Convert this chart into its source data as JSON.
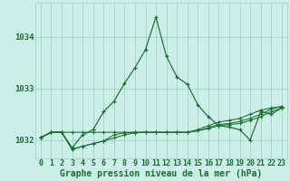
{
  "title": "Graphe pression niveau de la mer (hPa)",
  "background_color": "#cceee8",
  "grid_color": "#99ccbb",
  "line_color": "#1a6e2e",
  "marker_color": "#1a6e2e",
  "x_labels": [
    "0",
    "1",
    "2",
    "3",
    "4",
    "5",
    "6",
    "7",
    "8",
    "9",
    "10",
    "11",
    "12",
    "13",
    "14",
    "15",
    "16",
    "17",
    "18",
    "19",
    "20",
    "21",
    "22",
    "23"
  ],
  "ylim": [
    1031.65,
    1034.65
  ],
  "yticks": [
    1032,
    1033,
    1034
  ],
  "series": {
    "main": [
      1032.05,
      1032.15,
      1032.15,
      1031.85,
      1032.1,
      1032.2,
      1032.55,
      1032.75,
      1033.1,
      1033.4,
      1033.75,
      1034.38,
      1033.62,
      1033.22,
      1033.08,
      1032.68,
      1032.45,
      1032.28,
      1032.25,
      1032.2,
      1032.0,
      1032.55,
      1032.5,
      1032.62
    ],
    "line2": [
      1032.05,
      1032.15,
      1032.15,
      1032.15,
      1032.15,
      1032.15,
      1032.15,
      1032.15,
      1032.15,
      1032.15,
      1032.15,
      1032.15,
      1032.15,
      1032.15,
      1032.15,
      1032.18,
      1032.22,
      1032.28,
      1032.3,
      1032.32,
      1032.38,
      1032.45,
      1032.55,
      1032.62
    ],
    "line3": [
      1032.05,
      1032.15,
      1032.15,
      1031.82,
      1031.88,
      1031.93,
      1031.98,
      1032.04,
      1032.1,
      1032.14,
      1032.15,
      1032.15,
      1032.15,
      1032.15,
      1032.15,
      1032.18,
      1032.24,
      1032.3,
      1032.32,
      1032.36,
      1032.42,
      1032.5,
      1032.6,
      1032.65
    ],
    "line4": [
      1032.05,
      1032.15,
      1032.15,
      1031.82,
      1031.88,
      1031.93,
      1031.98,
      1032.1,
      1032.14,
      1032.15,
      1032.15,
      1032.15,
      1032.15,
      1032.15,
      1032.15,
      1032.2,
      1032.28,
      1032.35,
      1032.38,
      1032.42,
      1032.5,
      1032.58,
      1032.62,
      1032.65
    ]
  },
  "xlabel_fontsize": 6.0,
  "ylabel_fontsize": 6.5,
  "title_fontsize": 7.0
}
